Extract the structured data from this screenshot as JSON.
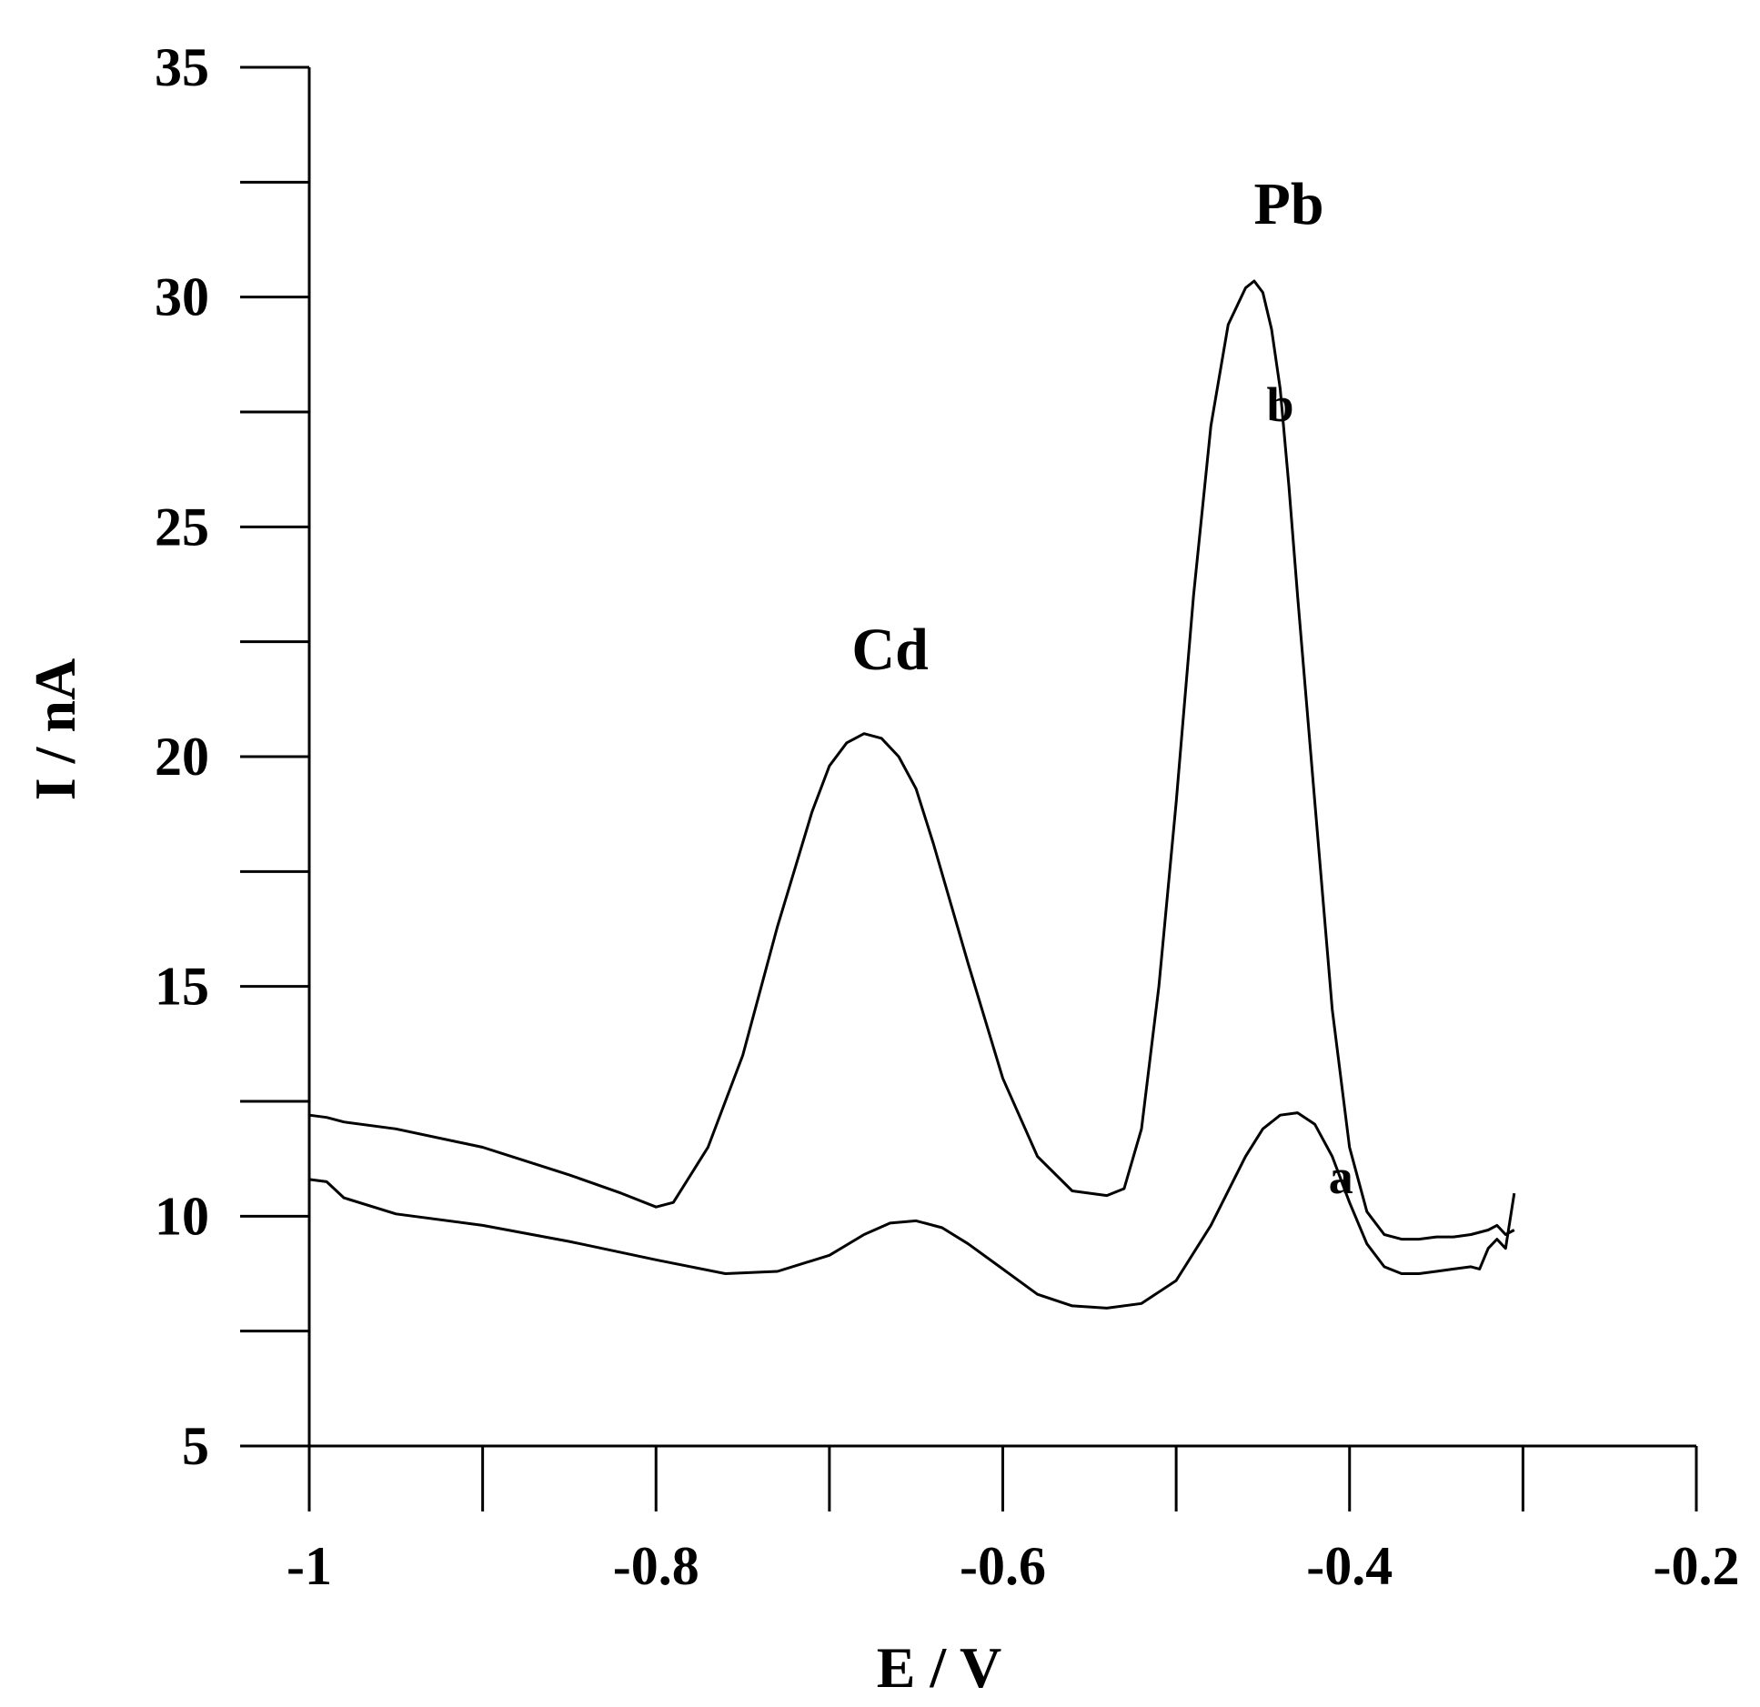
{
  "chart_data": {
    "type": "line",
    "xlabel": "E / V",
    "ylabel": "I / nA",
    "xlim": [
      -1.0,
      -0.2
    ],
    "ylim": [
      5,
      35
    ],
    "x_ticks": [
      -1.0,
      -0.9,
      -0.8,
      -0.7,
      -0.6,
      -0.5,
      -0.4,
      -0.3,
      -0.2
    ],
    "x_tick_labels": [
      "-1",
      "",
      "-0.8",
      "",
      "-0.6",
      "",
      "-0.4",
      "",
      "-0.2"
    ],
    "y_ticks": [
      5,
      7.5,
      10,
      12.5,
      15,
      17.5,
      20,
      22.5,
      25,
      27.5,
      30,
      32.5,
      35
    ],
    "y_tick_labels": [
      "5",
      "",
      "10",
      "",
      "15",
      "",
      "20",
      "",
      "25",
      "",
      "30",
      "",
      "35"
    ],
    "grid": false,
    "series": [
      {
        "name": "a",
        "x": [
          -1.0,
          -0.99,
          -0.98,
          -0.95,
          -0.9,
          -0.85,
          -0.8,
          -0.76,
          -0.73,
          -0.7,
          -0.68,
          -0.665,
          -0.65,
          -0.635,
          -0.62,
          -0.6,
          -0.58,
          -0.56,
          -0.54,
          -0.52,
          -0.5,
          -0.48,
          -0.46,
          -0.45,
          -0.44,
          -0.43,
          -0.42,
          -0.41,
          -0.4,
          -0.39,
          -0.38,
          -0.37,
          -0.36,
          -0.35,
          -0.34,
          -0.33,
          -0.325,
          -0.32,
          -0.315,
          -0.31,
          -0.305
        ],
        "y": [
          10.8,
          10.75,
          10.4,
          10.05,
          9.8,
          9.45,
          9.05,
          8.75,
          8.8,
          9.15,
          9.6,
          9.85,
          9.9,
          9.75,
          9.4,
          8.85,
          8.3,
          8.05,
          8.0,
          8.1,
          8.6,
          9.8,
          11.3,
          11.9,
          12.2,
          12.25,
          12.0,
          11.3,
          10.3,
          9.4,
          8.9,
          8.75,
          8.75,
          8.8,
          8.85,
          8.9,
          8.85,
          9.3,
          9.5,
          9.3,
          10.5
        ]
      },
      {
        "name": "b",
        "x": [
          -1.0,
          -0.99,
          -0.98,
          -0.95,
          -0.9,
          -0.85,
          -0.82,
          -0.8,
          -0.79,
          -0.77,
          -0.75,
          -0.73,
          -0.71,
          -0.7,
          -0.69,
          -0.68,
          -0.67,
          -0.66,
          -0.65,
          -0.64,
          -0.62,
          -0.6,
          -0.58,
          -0.56,
          -0.54,
          -0.53,
          -0.52,
          -0.51,
          -0.5,
          -0.49,
          -0.48,
          -0.47,
          -0.46,
          -0.455,
          -0.45,
          -0.445,
          -0.44,
          -0.435,
          -0.43,
          -0.42,
          -0.41,
          -0.4,
          -0.39,
          -0.38,
          -0.37,
          -0.36,
          -0.35,
          -0.34,
          -0.33,
          -0.32,
          -0.315,
          -0.31,
          -0.305
        ],
        "y": [
          12.2,
          12.15,
          12.05,
          11.9,
          11.5,
          10.9,
          10.5,
          10.2,
          10.3,
          11.5,
          13.5,
          16.3,
          18.8,
          19.8,
          20.3,
          20.5,
          20.4,
          20.0,
          19.3,
          18.1,
          15.5,
          13.0,
          11.3,
          10.55,
          10.45,
          10.6,
          11.9,
          15.0,
          19.0,
          23.5,
          27.2,
          29.4,
          30.2,
          30.35,
          30.1,
          29.3,
          28.0,
          25.9,
          23.5,
          19.0,
          14.5,
          11.5,
          10.1,
          9.6,
          9.5,
          9.5,
          9.55,
          9.55,
          9.6,
          9.7,
          9.8,
          9.6,
          9.7
        ]
      }
    ],
    "annotations": [
      {
        "text": "Cd",
        "x": -0.665,
        "y": 21.9,
        "size": "large"
      },
      {
        "text": "Pb",
        "x": -0.435,
        "y": 31.6,
        "size": "large"
      },
      {
        "text": "b",
        "x": -0.44,
        "y": 27.3,
        "size": "small"
      },
      {
        "text": "a",
        "x": -0.405,
        "y": 10.5,
        "size": "small"
      }
    ]
  }
}
